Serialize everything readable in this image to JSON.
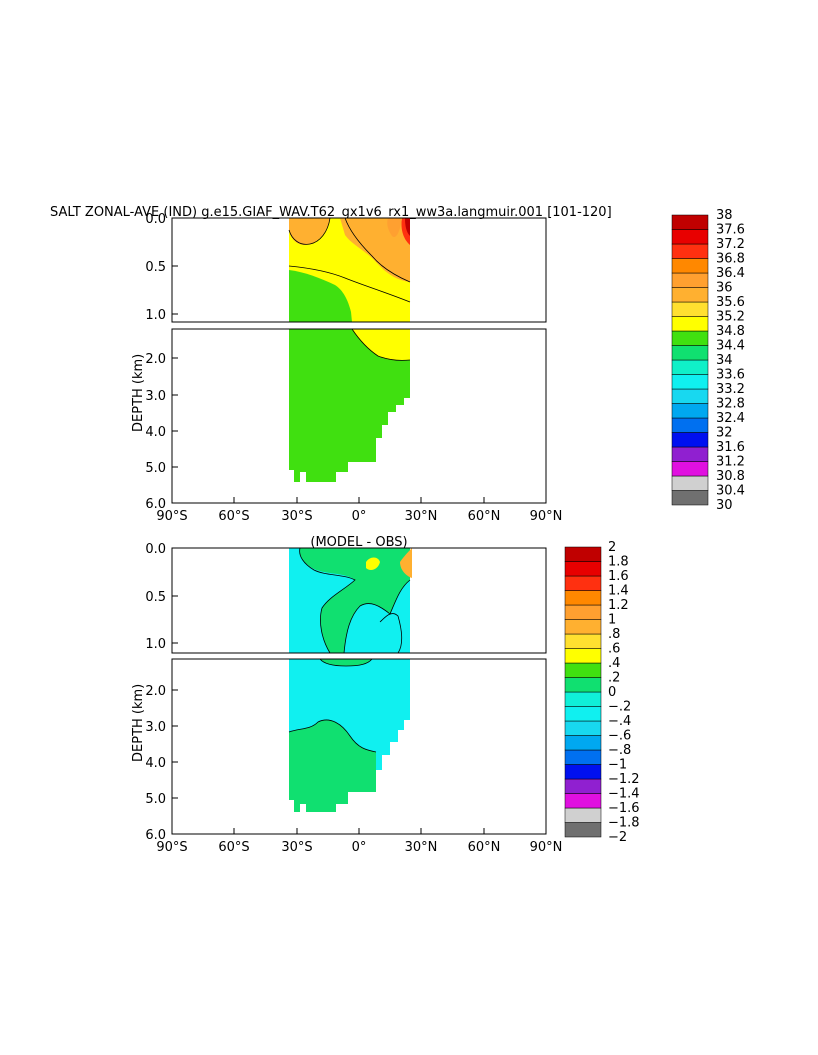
{
  "title": "SALT ZONAL-AVE (IND) g.e15.GIAF_WAV.T62_gx1v6_rx1_ww3a.langmuir.001 [101-120]",
  "chart_data": [
    {
      "type": "heatmap",
      "title": "SALT ZONAL-AVE (IND) g.e15.GIAF_WAV.T62_gx1v6_rx1_ww3a.langmuir.001 [101-120]",
      "xlabel": "",
      "ylabel": "DEPTH (km)",
      "x_ticks": [
        "90°S",
        "60°S",
        "30°S",
        "0°",
        "30°N",
        "60°N",
        "90°N"
      ],
      "y_ticks_upper": [
        "0.0",
        "0.5",
        "1.0"
      ],
      "y_ticks_lower": [
        "2.0",
        "3.0",
        "4.0",
        "5.0",
        "6.0"
      ],
      "xlim": [
        -90,
        90
      ],
      "ylim_km": [
        6.0,
        0.0
      ],
      "colorbar": {
        "levels": [
          "30",
          "30.4",
          "30.8",
          "31.2",
          "31.6",
          "32",
          "32.4",
          "32.8",
          "33.2",
          "33.6",
          "34",
          "34.4",
          "34.8",
          "35.2",
          "35.6",
          "36",
          "36.4",
          "36.8",
          "37.2",
          "37.6",
          "38"
        ],
        "colors": [
          "#707070",
          "#d0d0d0",
          "#e010e0",
          "#9020d0",
          "#0010f0",
          "#0070f0",
          "#00a8f0",
          "#18d8f0",
          "#10f0f0",
          "#10f0c8",
          "#10e070",
          "#40e010",
          "#ffff00",
          "#ffe030",
          "#ffb030",
          "#ffa030",
          "#ff8800",
          "#ff3010",
          "#e80000",
          "#c00000"
        ]
      },
      "regions": [
        {
          "name": "salt-yellow",
          "value_range": "34.8-35.2"
        },
        {
          "name": "salt-green",
          "value_range": "34.4-34.8"
        },
        {
          "name": "salt-orange",
          "value_range": "35.6-36.4"
        },
        {
          "name": "salt-red",
          "value_range": "36.8-38"
        }
      ]
    },
    {
      "type": "heatmap",
      "title": "(MODEL - OBS)",
      "xlabel": "",
      "ylabel": "DEPTH (km)",
      "x_ticks": [
        "90°S",
        "60°S",
        "30°S",
        "0°",
        "30°N",
        "60°N",
        "90°N"
      ],
      "y_ticks_upper": [
        "0.0",
        "0.5",
        "1.0"
      ],
      "y_ticks_lower": [
        "2.0",
        "3.0",
        "4.0",
        "5.0",
        "6.0"
      ],
      "xlim": [
        -90,
        90
      ],
      "ylim_km": [
        6.0,
        0.0
      ],
      "colorbar": {
        "levels": [
          "-2",
          "-1.8",
          "-1.6",
          "-1.4",
          "-1.2",
          "-1",
          "-.8",
          "-.6",
          "-.4",
          "-.2",
          "0",
          ".2",
          ".4",
          ".6",
          ".8",
          "1",
          "1.2",
          "1.4",
          "1.6",
          "1.8",
          "2"
        ],
        "colors": [
          "#707070",
          "#d0d0d0",
          "#e010e0",
          "#9020d0",
          "#0010f0",
          "#0070f0",
          "#00a8f0",
          "#18d8f0",
          "#10f0f0",
          "#10f0d8",
          "#10e070",
          "#40e010",
          "#ffff00",
          "#ffe030",
          "#ffb030",
          "#ffa030",
          "#ff8800",
          "#ff3010",
          "#e80000",
          "#c00000"
        ]
      },
      "regions": [
        {
          "name": "diff-cyan",
          "value_range": "-0.2-0"
        },
        {
          "name": "diff-green",
          "value_range": "0-0.2"
        },
        {
          "name": "diff-yellow",
          "value_range": "0.4-0.6"
        },
        {
          "name": "diff-orange",
          "value_range": "0.8-1.4"
        }
      ]
    }
  ]
}
